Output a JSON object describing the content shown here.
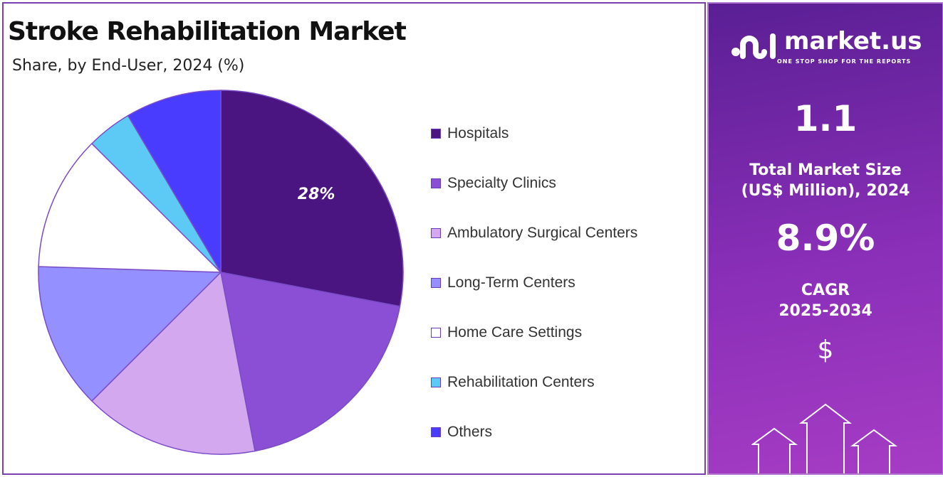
{
  "header": {
    "title": "Stroke Rehabilitation Market",
    "subtitle": "Share, by End-User, 2024 (%)"
  },
  "chart_data": {
    "type": "pie",
    "title": "Stroke Rehabilitation Market",
    "subtitle": "Share, by End-User, 2024 (%)",
    "start_angle": "top",
    "direction": "clockwise",
    "legend_position": "right",
    "categories": [
      "Hospitals",
      "Specialty Clinics",
      "Ambulatory Surgical Centers",
      "Long-Term Centers",
      "Home Care Settings",
      "Rehabilitation Centers",
      "Others"
    ],
    "values": [
      28,
      19,
      15.5,
      13,
      12,
      4,
      8.5
    ],
    "colors": [
      "#4a1580",
      "#8a4fd4",
      "#d4a8ee",
      "#9490ff",
      "#ffffff",
      "#5ccaf5",
      "#4a3cff"
    ],
    "data_labels": [
      {
        "category": "Hospitals",
        "text": "28%"
      }
    ]
  },
  "panel": {
    "brand": "market.us",
    "tagline": "ONE STOP SHOP FOR THE REPORTS",
    "market_size": "1.1",
    "market_size_label_1": "Total Market Size",
    "market_size_label_2": "(US$ Million), 2024",
    "cagr": "8.9%",
    "cagr_label_1": "CAGR",
    "cagr_label_2": "2025-2034",
    "currency_symbol": "$"
  }
}
